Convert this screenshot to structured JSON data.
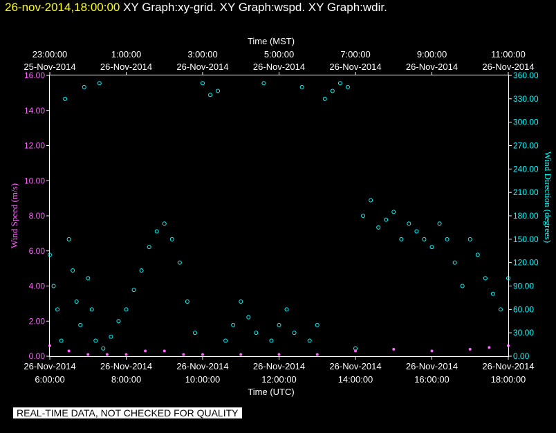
{
  "header": {
    "timestamp": "26-nov-2014,18:00:00",
    "graphs": "XY Graph:xy-grid.  XY Graph:wspd.  XY Graph:wdir."
  },
  "footer": {
    "qc_note": "REAL-TIME DATA, NOT CHECKED FOR QUALITY"
  },
  "colors": {
    "background": "#000000",
    "axes": "#ffffff",
    "wind_speed": "#ff66ff",
    "wind_direction": "#00ffff",
    "header_time": "#ffff00"
  },
  "chart_data": {
    "type": "scatter",
    "top_axis_title": "Time (MST)",
    "bottom_axis_title": "Time (UTC)",
    "left_axis_title": "Wind Speed (m/s)",
    "right_axis_title": "Wind Direction (degrees)",
    "x_range_utc_hours": [
      6,
      18
    ],
    "left_ylim": [
      0,
      16
    ],
    "right_ylim": [
      0,
      360
    ],
    "left_ticks": [
      "0.00",
      "2.00",
      "4.00",
      "6.00",
      "8.00",
      "10.00",
      "12.00",
      "14.00",
      "16.00"
    ],
    "right_ticks": [
      "0.00",
      "30.00",
      "60.00",
      "90.00",
      "120.00",
      "150.00",
      "180.00",
      "210.00",
      "240.00",
      "270.00",
      "300.00",
      "330.00",
      "360.00"
    ],
    "bottom_ticks": [
      {
        "date": "26-Nov-2014",
        "time": "6:00:00"
      },
      {
        "date": "26-Nov-2014",
        "time": "8:00:00"
      },
      {
        "date": "26-Nov-2014",
        "time": "10:00:00"
      },
      {
        "date": "26-Nov-2014",
        "time": "12:00:00"
      },
      {
        "date": "26-Nov-2014",
        "time": "14:00:00"
      },
      {
        "date": "26-Nov-2014",
        "time": "16:00:00"
      },
      {
        "date": "26-Nov-2014",
        "time": "18:00:00"
      }
    ],
    "top_ticks": [
      {
        "time": "23:00:00",
        "date": "25-Nov-2014"
      },
      {
        "time": "1:00:00",
        "date": "26-Nov-2014"
      },
      {
        "time": "3:00:00",
        "date": "26-Nov-2014"
      },
      {
        "time": "5:00:00",
        "date": "26-Nov-2014"
      },
      {
        "time": "7:00:00",
        "date": "26-Nov-2014"
      },
      {
        "time": "9:00:00",
        "date": "26-Nov-2014"
      },
      {
        "time": "11:00:00",
        "date": "26-Nov-2014"
      }
    ],
    "series": [
      {
        "name": "wspd",
        "axis": "left",
        "points": [
          [
            6.0,
            0.6
          ],
          [
            6.5,
            0.3
          ],
          [
            7.0,
            0.1
          ],
          [
            7.5,
            0.1
          ],
          [
            8.0,
            0.1
          ],
          [
            8.5,
            0.3
          ],
          [
            9.0,
            0.3
          ],
          [
            9.5,
            0.1
          ],
          [
            10.0,
            0.1
          ],
          [
            11.0,
            0.1
          ],
          [
            12.0,
            0.1
          ],
          [
            13.0,
            0.1
          ],
          [
            14.0,
            0.3
          ],
          [
            15.0,
            0.4
          ],
          [
            16.0,
            0.3
          ],
          [
            17.0,
            0.4
          ],
          [
            17.5,
            0.5
          ],
          [
            18.0,
            0.6
          ]
        ]
      },
      {
        "name": "wdir",
        "axis": "right",
        "points": [
          [
            6.0,
            130
          ],
          [
            6.1,
            90
          ],
          [
            6.2,
            60
          ],
          [
            6.3,
            20
          ],
          [
            6.4,
            330
          ],
          [
            6.5,
            150
          ],
          [
            6.6,
            110
          ],
          [
            6.7,
            70
          ],
          [
            6.8,
            40
          ],
          [
            6.9,
            345
          ],
          [
            7.0,
            100
          ],
          [
            7.1,
            60
          ],
          [
            7.2,
            20
          ],
          [
            7.3,
            350
          ],
          [
            7.4,
            10
          ],
          [
            7.6,
            25
          ],
          [
            7.8,
            45
          ],
          [
            8.0,
            60
          ],
          [
            8.2,
            85
          ],
          [
            8.4,
            110
          ],
          [
            8.6,
            140
          ],
          [
            8.8,
            160
          ],
          [
            9.0,
            170
          ],
          [
            9.2,
            150
          ],
          [
            9.4,
            120
          ],
          [
            9.6,
            70
          ],
          [
            9.8,
            30
          ],
          [
            10.0,
            350
          ],
          [
            10.2,
            335
          ],
          [
            10.4,
            340
          ],
          [
            10.6,
            20
          ],
          [
            10.8,
            40
          ],
          [
            11.0,
            70
          ],
          [
            11.2,
            50
          ],
          [
            11.4,
            30
          ],
          [
            11.6,
            350
          ],
          [
            11.8,
            20
          ],
          [
            12.0,
            40
          ],
          [
            12.2,
            60
          ],
          [
            12.4,
            30
          ],
          [
            12.6,
            345
          ],
          [
            12.8,
            20
          ],
          [
            13.0,
            40
          ],
          [
            13.2,
            330
          ],
          [
            13.4,
            340
          ],
          [
            13.6,
            350
          ],
          [
            13.8,
            345
          ],
          [
            14.0,
            10
          ],
          [
            14.2,
            180
          ],
          [
            14.4,
            200
          ],
          [
            14.6,
            165
          ],
          [
            14.8,
            175
          ],
          [
            15.0,
            185
          ],
          [
            15.2,
            150
          ],
          [
            15.4,
            170
          ],
          [
            15.6,
            160
          ],
          [
            15.8,
            150
          ],
          [
            16.0,
            140
          ],
          [
            16.2,
            170
          ],
          [
            16.4,
            150
          ],
          [
            16.6,
            120
          ],
          [
            16.8,
            90
          ],
          [
            17.0,
            150
          ],
          [
            17.2,
            130
          ],
          [
            17.4,
            100
          ],
          [
            17.6,
            80
          ],
          [
            17.8,
            60
          ],
          [
            18.0,
            100
          ]
        ]
      }
    ]
  }
}
